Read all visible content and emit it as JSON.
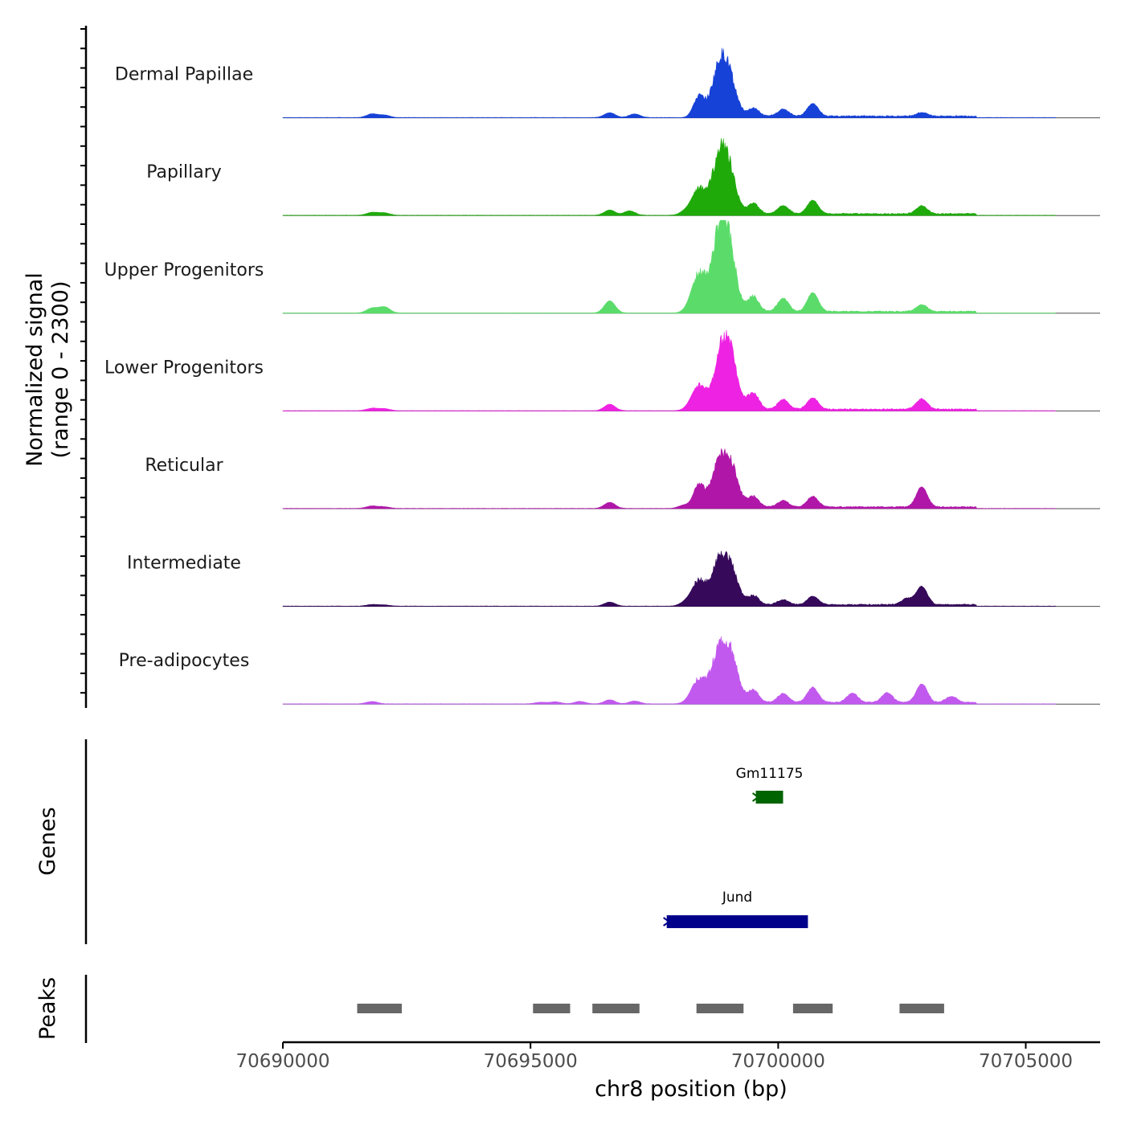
{
  "chart_data": {
    "type": "area",
    "title": "",
    "ylabel_line1": "Normalized signal",
    "ylabel_line2": "(range 0 - 2300)",
    "xlabel": "chr8 position (bp)",
    "xlim": [
      70690000,
      70706500
    ],
    "ylim": [
      0,
      2300
    ],
    "x_ticks": [
      70690000,
      70695000,
      70700000,
      70705000
    ],
    "x_tick_labels": [
      "70690000",
      "70695000",
      "70700000",
      "70705000"
    ],
    "signal_range": [
      70690000,
      70705600
    ],
    "tracks": [
      {
        "name": "Dermal Papillae",
        "color": "#1742d8",
        "peaks": [
          [
            70691800,
            90
          ],
          [
            70692050,
            60
          ],
          [
            70696600,
            120
          ],
          [
            70697100,
            90
          ],
          [
            70698400,
            520
          ],
          [
            70698800,
            1080
          ],
          [
            70699000,
            900
          ],
          [
            70699500,
            200
          ],
          [
            70700100,
            170
          ],
          [
            70700700,
            310
          ],
          [
            70702900,
            90
          ]
        ]
      },
      {
        "name": "Papillary",
        "color": "#1faa0a",
        "peaks": [
          [
            70691800,
            70
          ],
          [
            70692050,
            60
          ],
          [
            70696600,
            130
          ],
          [
            70697000,
            110
          ],
          [
            70698100,
            60
          ],
          [
            70698400,
            640
          ],
          [
            70698800,
            1200
          ],
          [
            70699000,
            980
          ],
          [
            70699500,
            260
          ],
          [
            70700100,
            210
          ],
          [
            70700700,
            330
          ],
          [
            70702900,
            200
          ]
        ]
      },
      {
        "name": "Upper Progenitors",
        "color": "#5bdc6a",
        "peaks": [
          [
            70691800,
            120
          ],
          [
            70692050,
            150
          ],
          [
            70696600,
            300
          ],
          [
            70698400,
            960
          ],
          [
            70698800,
            1640
          ],
          [
            70699000,
            1450
          ],
          [
            70699500,
            380
          ],
          [
            70700100,
            330
          ],
          [
            70700700,
            470
          ],
          [
            70702900,
            170
          ]
        ]
      },
      {
        "name": "Lower Progenitors",
        "color": "#ee22e2",
        "peaks": [
          [
            70691800,
            60
          ],
          [
            70692050,
            50
          ],
          [
            70696600,
            160
          ],
          [
            70698400,
            620
          ],
          [
            70698850,
            1280
          ],
          [
            70699050,
            1080
          ],
          [
            70699500,
            400
          ],
          [
            70700100,
            240
          ],
          [
            70700700,
            280
          ],
          [
            70702900,
            260
          ]
        ]
      },
      {
        "name": "Reticular",
        "color": "#b017a8",
        "peaks": [
          [
            70691800,
            60
          ],
          [
            70692050,
            40
          ],
          [
            70696600,
            150
          ],
          [
            70698100,
            80
          ],
          [
            70698400,
            580
          ],
          [
            70698800,
            1050
          ],
          [
            70699050,
            920
          ],
          [
            70699500,
            260
          ],
          [
            70700100,
            160
          ],
          [
            70700700,
            260
          ],
          [
            70702900,
            500
          ]
        ]
      },
      {
        "name": "Intermediate",
        "color": "#36095b",
        "peaks": [
          [
            70691800,
            40
          ],
          [
            70692050,
            30
          ],
          [
            70696600,
            100
          ],
          [
            70698100,
            60
          ],
          [
            70698400,
            620
          ],
          [
            70698800,
            1000
          ],
          [
            70699050,
            800
          ],
          [
            70699500,
            220
          ],
          [
            70700100,
            120
          ],
          [
            70700700,
            210
          ],
          [
            70702600,
            150
          ],
          [
            70702900,
            450
          ]
        ]
      },
      {
        "name": "Pre-adipocytes",
        "color": "#c259ee",
        "peaks": [
          [
            70691800,
            60
          ],
          [
            70695200,
            40
          ],
          [
            70695500,
            50
          ],
          [
            70696000,
            60
          ],
          [
            70696600,
            100
          ],
          [
            70697100,
            70
          ],
          [
            70698400,
            620
          ],
          [
            70698800,
            1200
          ],
          [
            70699050,
            1050
          ],
          [
            70699500,
            300
          ],
          [
            70700100,
            220
          ],
          [
            70700700,
            370
          ],
          [
            70701500,
            230
          ],
          [
            70702200,
            240
          ],
          [
            70702900,
            460
          ],
          [
            70703500,
            150
          ]
        ]
      }
    ],
    "genes": [
      {
        "name": "Gm11175",
        "start": 70699550,
        "end": 70700100,
        "color": "#006400",
        "strand": "-"
      },
      {
        "name": "Jund",
        "start": 70697750,
        "end": 70700600,
        "color": "#00008b",
        "strand": "-"
      }
    ],
    "genes_track_label": "Genes",
    "peaks_track_label": "Peaks",
    "peak_color": "#676767",
    "peak_regions": [
      [
        70691500,
        70692400
      ],
      [
        70695050,
        70695800
      ],
      [
        70696250,
        70697200
      ],
      [
        70698350,
        70699300
      ],
      [
        70700300,
        70701100
      ],
      [
        70702450,
        70703350
      ]
    ]
  }
}
